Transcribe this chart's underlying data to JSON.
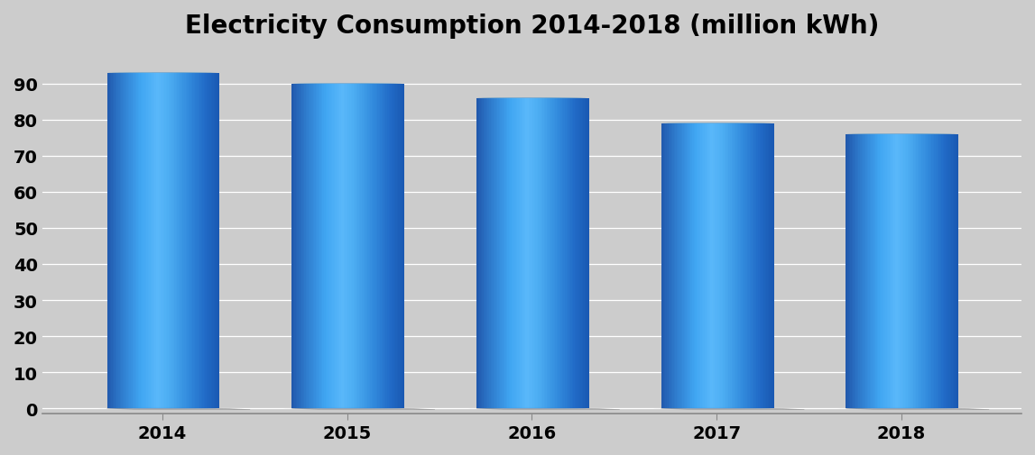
{
  "title": "Electricity Consumption 2014-2018 (million kWh)",
  "categories": [
    "2014",
    "2015",
    "2016",
    "2017",
    "2018"
  ],
  "values": [
    93,
    90,
    86,
    79,
    76
  ],
  "ylim": [
    0,
    100
  ],
  "yticks": [
    0,
    10,
    20,
    30,
    40,
    50,
    60,
    70,
    80,
    90
  ],
  "background_color": "#CCCCCC",
  "plot_bg_color": "#CCCCCC",
  "title_fontsize": 20,
  "tick_fontsize": 14,
  "bar_width": 0.6,
  "n_strips": 80,
  "gradient_stops": [
    [
      0.0,
      [
        0.13,
        0.35,
        0.68
      ]
    ],
    [
      0.12,
      [
        0.18,
        0.48,
        0.8
      ]
    ],
    [
      0.3,
      [
        0.25,
        0.65,
        0.95
      ]
    ],
    [
      0.45,
      [
        0.35,
        0.72,
        0.98
      ]
    ],
    [
      0.55,
      [
        0.3,
        0.68,
        0.95
      ]
    ],
    [
      0.72,
      [
        0.2,
        0.55,
        0.87
      ]
    ],
    [
      0.88,
      [
        0.13,
        0.42,
        0.78
      ]
    ],
    [
      1.0,
      [
        0.1,
        0.35,
        0.7
      ]
    ]
  ],
  "top_cap_outer": "#1060A0",
  "top_cap_mid": "#2080C8",
  "top_cap_highlight": "#90D0F8",
  "top_cap_bright": "#D0ECFF",
  "bottom_base_color": "#1565C0",
  "shadow_color": "#AAAAAA",
  "floor_color": "#C0C0C0",
  "floor_depth": 0.35
}
